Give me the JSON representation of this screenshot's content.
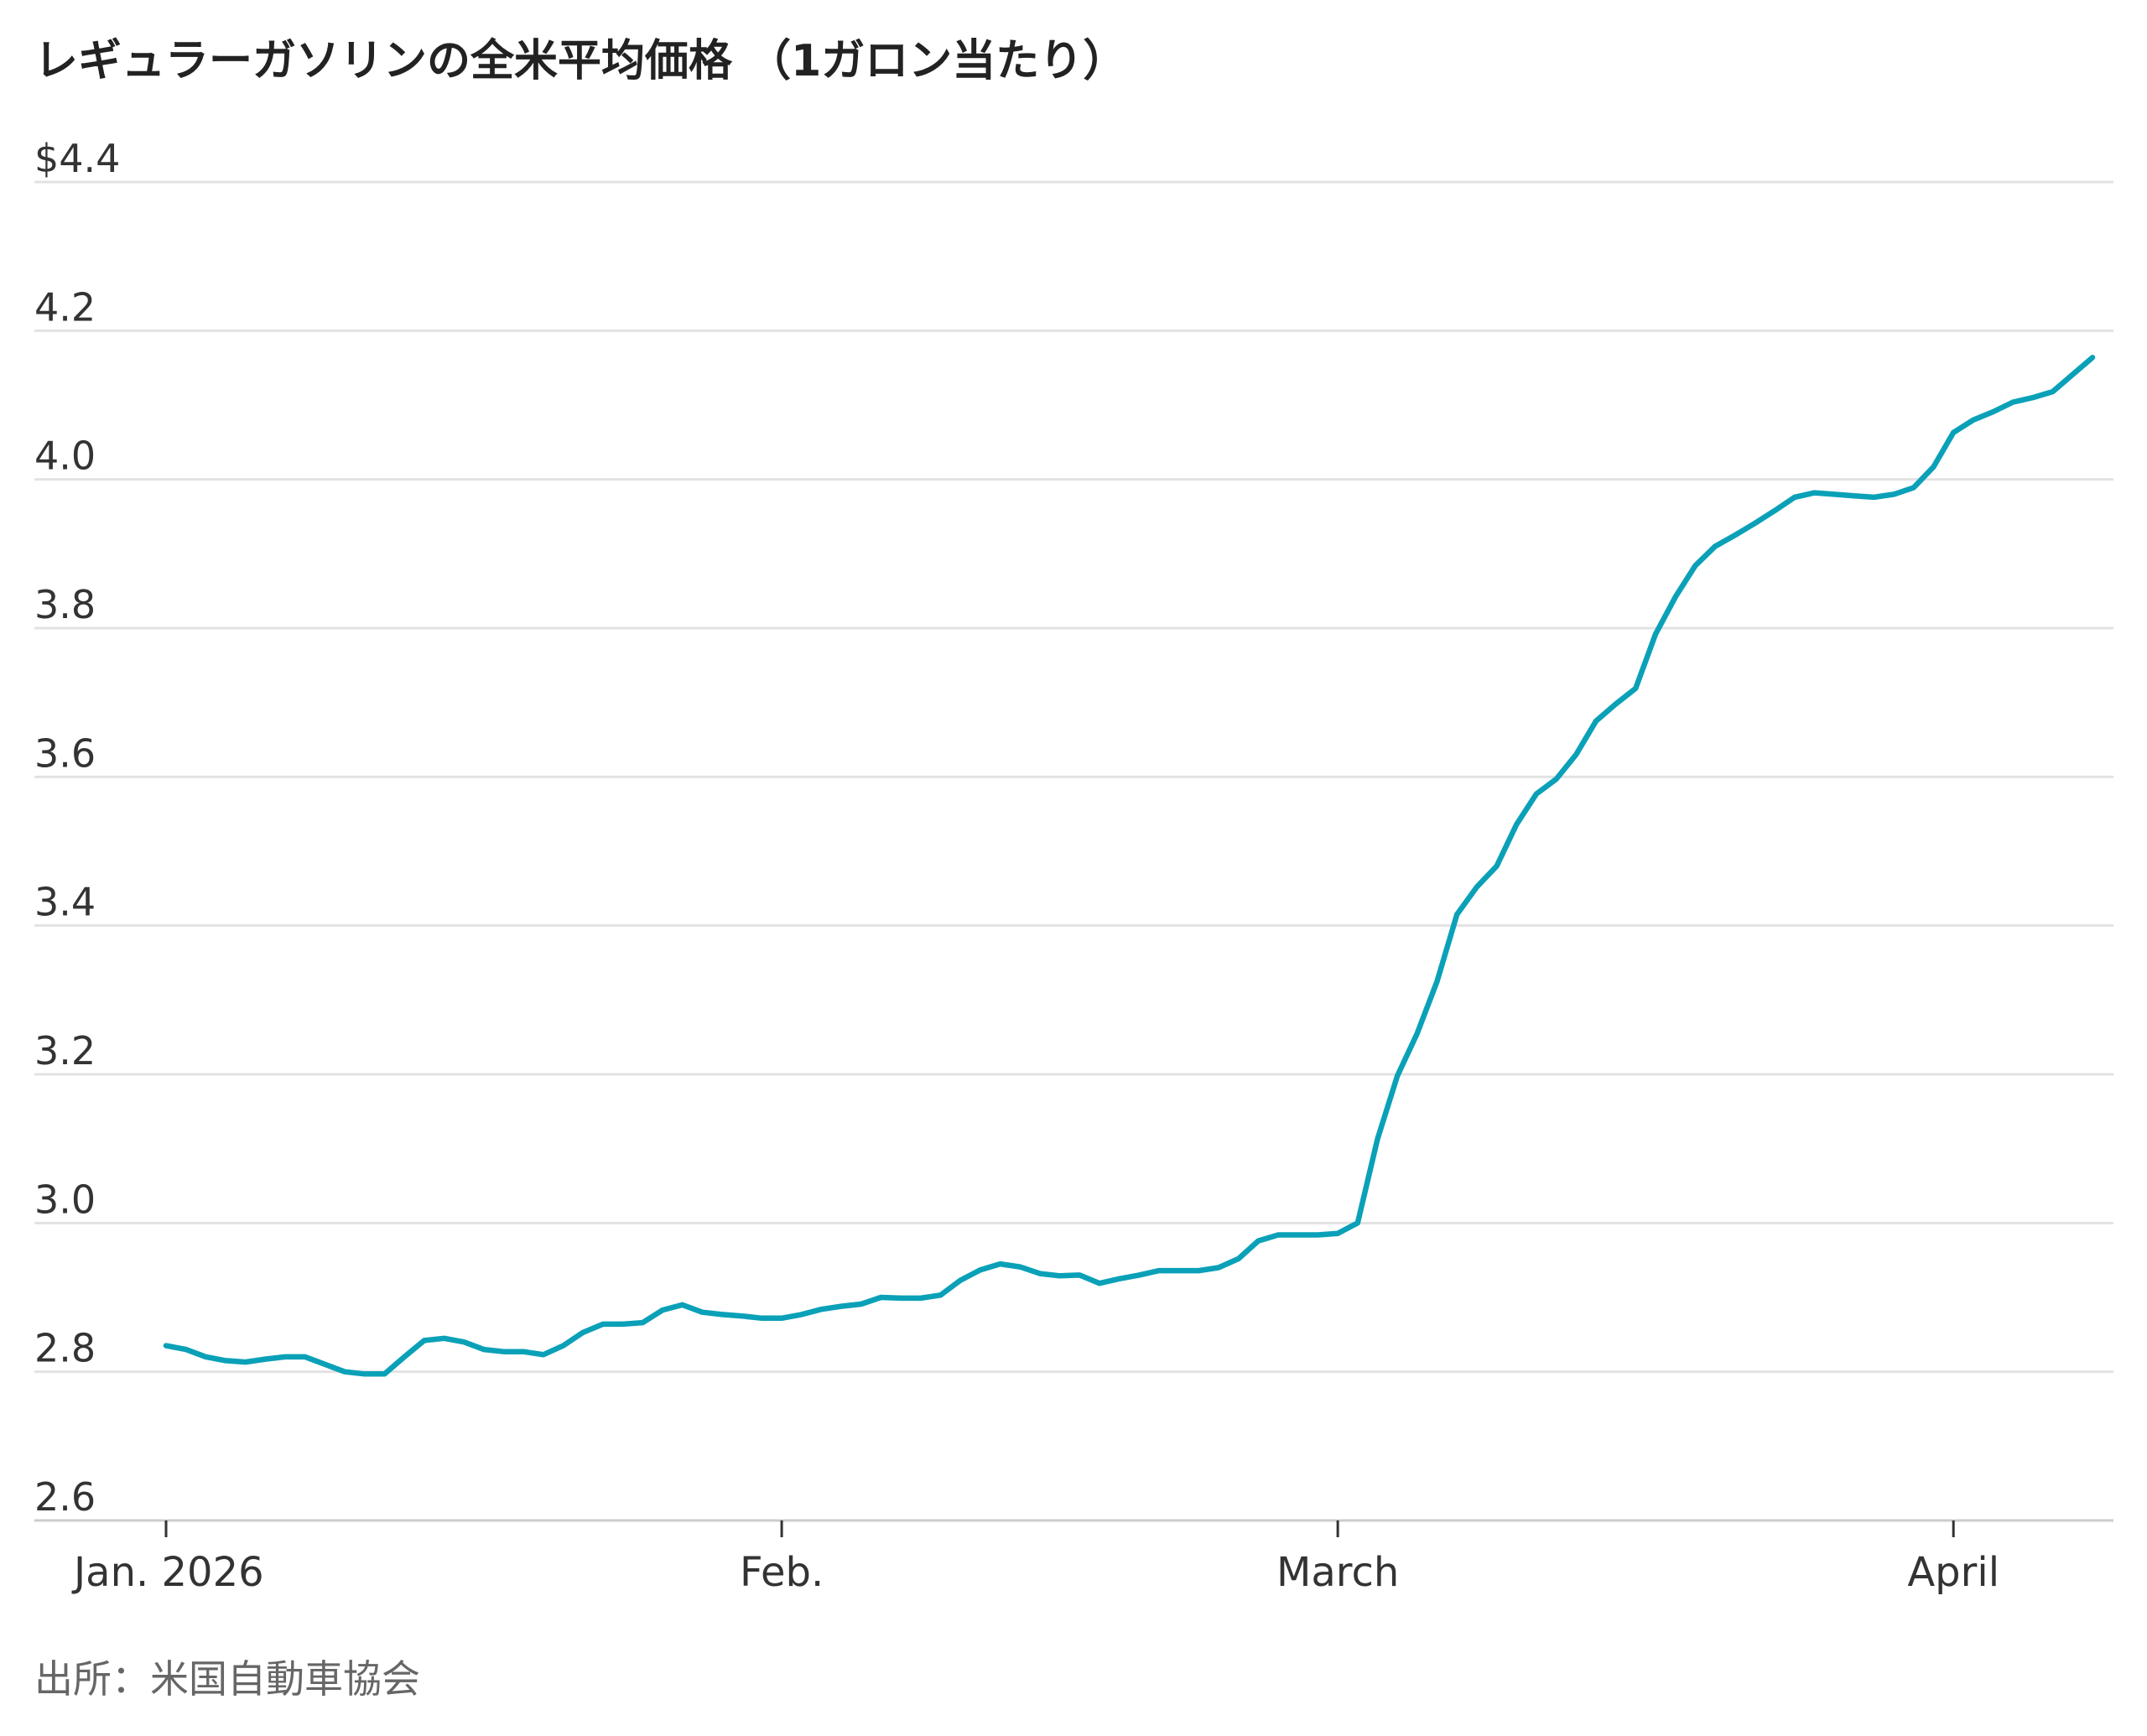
{
  "chart_data": {
    "type": "line",
    "title": "レギュラーガソリンの全米平均価格 （1ガロン当たり）",
    "source": "出所：米国自動車協会",
    "categories": [
      "Jan. 2026",
      null,
      null,
      null,
      null,
      null,
      null,
      null,
      null,
      null,
      null,
      null,
      null,
      null,
      null,
      null,
      null,
      null,
      null,
      null,
      null,
      null,
      null,
      null,
      null,
      null,
      null,
      null,
      null,
      null,
      null,
      "Feb.",
      null,
      null,
      null,
      null,
      null,
      null,
      null,
      null,
      null,
      null,
      null,
      null,
      null,
      null,
      null,
      null,
      null,
      null,
      null,
      null,
      null,
      null,
      null,
      null,
      null,
      null,
      null,
      "March",
      null,
      null,
      null,
      null,
      null,
      null,
      null,
      null,
      null,
      null,
      null,
      null,
      null,
      null,
      null,
      null,
      null,
      null,
      null,
      null,
      null,
      null,
      null,
      null,
      null,
      null,
      null,
      null,
      null,
      null,
      "April",
      null,
      null,
      null,
      null,
      null,
      null,
      null
    ],
    "series": [
      {
        "name": "Regular",
        "color": "#0aa1b8",
        "values": [
          2.835,
          2.83,
          2.82,
          2.815,
          2.813,
          2.817,
          2.82,
          2.82,
          2.81,
          2.8,
          2.797,
          2.797,
          2.82,
          2.842,
          2.845,
          2.84,
          2.83,
          2.827,
          2.827,
          2.823,
          2.835,
          2.853,
          2.864,
          2.864,
          2.866,
          2.883,
          2.89,
          2.88,
          2.877,
          2.875,
          2.872,
          2.872,
          2.877,
          2.884,
          2.888,
          2.891,
          2.9,
          2.899,
          2.899,
          2.903,
          2.923,
          2.937,
          2.945,
          2.941,
          2.932,
          2.929,
          2.93,
          2.919,
          2.925,
          2.93,
          2.936,
          2.936,
          2.936,
          2.94,
          2.952,
          2.976,
          2.984,
          2.984,
          2.984,
          2.986,
          3.0,
          3.113,
          3.198,
          3.255,
          3.325,
          3.415,
          3.452,
          3.48,
          3.536,
          3.577,
          3.597,
          3.63,
          3.675,
          3.698,
          3.719,
          3.792,
          3.842,
          3.884,
          3.91,
          3.925,
          3.941,
          3.958,
          3.976,
          3.982,
          3.98,
          3.978,
          3.976,
          3.98,
          3.989,
          4.017,
          4.063,
          4.08,
          4.091,
          4.104,
          4.11,
          4.118,
          4.141,
          4.164
        ]
      }
    ],
    "ylim": [
      2.6,
      4.4
    ],
    "yticks": [
      2.6,
      2.8,
      {
        "value": 3,
        "label": "3.0"
      },
      3.2,
      3.4,
      3.6,
      3.8,
      {
        "value": 4,
        "label": "4.0"
      },
      4.2,
      {
        "value": 4.4,
        "label": "$4.4"
      }
    ],
    "grid": true
  }
}
